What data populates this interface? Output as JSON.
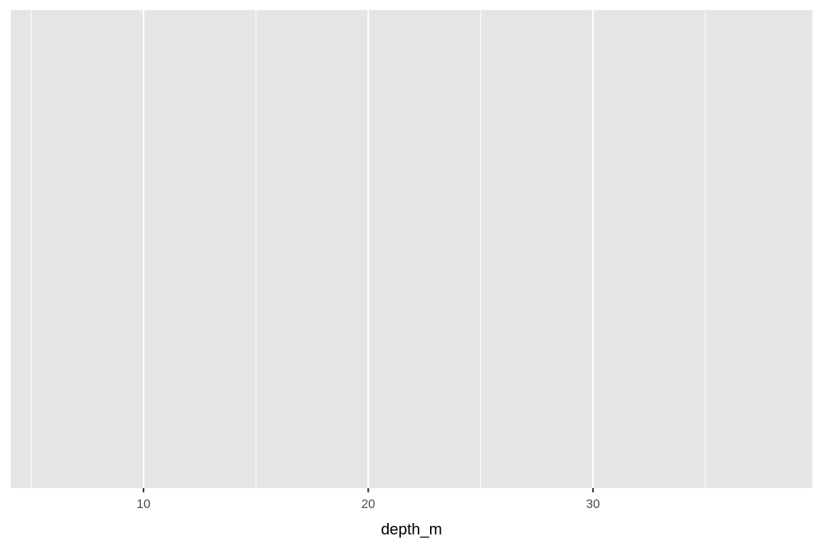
{
  "chart_data": {
    "type": "scatter",
    "title": "",
    "xlabel": "depth_m",
    "ylabel": "",
    "xlim": [
      4.09,
      39.76
    ],
    "x_major_ticks": [
      10,
      20,
      30
    ],
    "x_tick_labels": [
      "10",
      "20",
      "30"
    ],
    "x_minor_ticks": [
      5,
      15,
      25,
      35
    ],
    "points": [],
    "grid": true,
    "panel_background": "#e5e5e5",
    "grid_color": "#ffffff",
    "text_color": "#4d4d4d"
  }
}
